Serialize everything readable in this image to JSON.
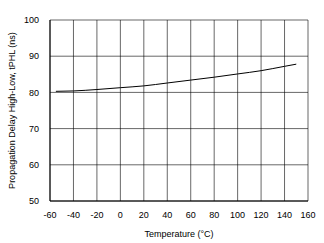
{
  "chart_data": {
    "type": "line",
    "xlabel": "Temperature (°C)",
    "ylabel": "Propagation Delay High-Low, tPHL (ns)",
    "x": [
      -55,
      -40,
      -20,
      0,
      20,
      40,
      60,
      80,
      100,
      120,
      140,
      150
    ],
    "values": [
      80.3,
      80.4,
      80.8,
      81.3,
      81.8,
      82.6,
      83.4,
      84.2,
      85.1,
      86.0,
      87.2,
      87.8
    ],
    "color": "#000000",
    "xlim": [
      -60,
      160
    ],
    "xticks": [
      -60,
      -40,
      -20,
      0,
      20,
      40,
      60,
      80,
      100,
      120,
      140,
      160
    ],
    "ylim": [
      50,
      100
    ],
    "yticks": [
      50,
      60,
      70,
      80,
      90,
      100
    ],
    "grid": true
  }
}
